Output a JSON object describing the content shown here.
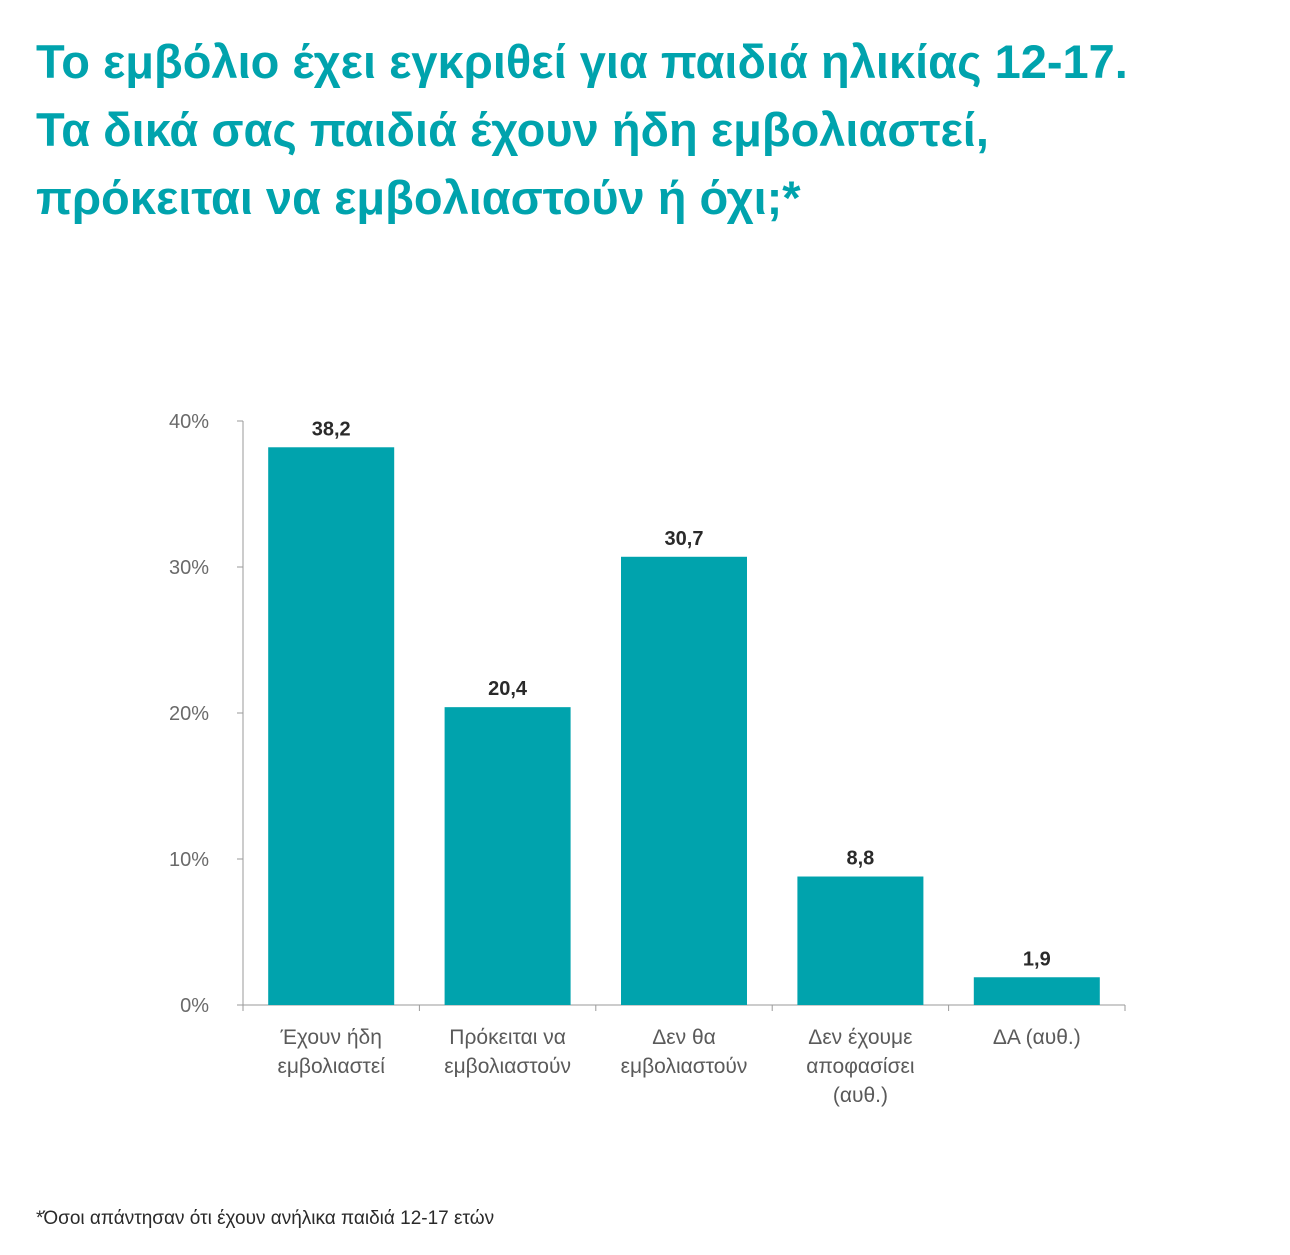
{
  "title_lines": [
    "Το εμβόλιο έχει εγκριθεί για παιδιά ηλικίας 12-17.",
    "Τα δικά σας παιδιά έχουν ήδη εμβολιαστεί,",
    "πρόκειται να εμβολιαστούν ή όχι;*"
  ],
  "footnote": "*Όσοι απάντησαν ότι έχουν ανήλικα παιδιά 12-17 ετών",
  "colors": {
    "bar": "#00a3ad",
    "title": "#00a3ad",
    "axis": "#9a9a9a"
  },
  "chart_data": {
    "type": "bar",
    "categories": [
      [
        "Έχουν ήδη",
        "εμβολιαστεί"
      ],
      [
        "Πρόκειται να",
        "εμβολιαστούν"
      ],
      [
        "Δεν θα",
        "εμβολιαστούν"
      ],
      [
        "Δεν έχουμε",
        "αποφασίσει",
        "(αυθ.)"
      ],
      [
        "ΔΑ (αυθ.)"
      ]
    ],
    "values": [
      38.2,
      20.4,
      30.7,
      8.8,
      1.9
    ],
    "value_labels": [
      "38,2",
      "20,4",
      "30,7",
      "8,8",
      "1,9"
    ],
    "yticks": [
      0,
      10,
      20,
      30,
      40
    ],
    "ytick_labels": [
      "0%",
      "10%",
      "20%",
      "30%",
      "40%"
    ],
    "ylim": [
      0,
      40
    ],
    "grid": false
  }
}
